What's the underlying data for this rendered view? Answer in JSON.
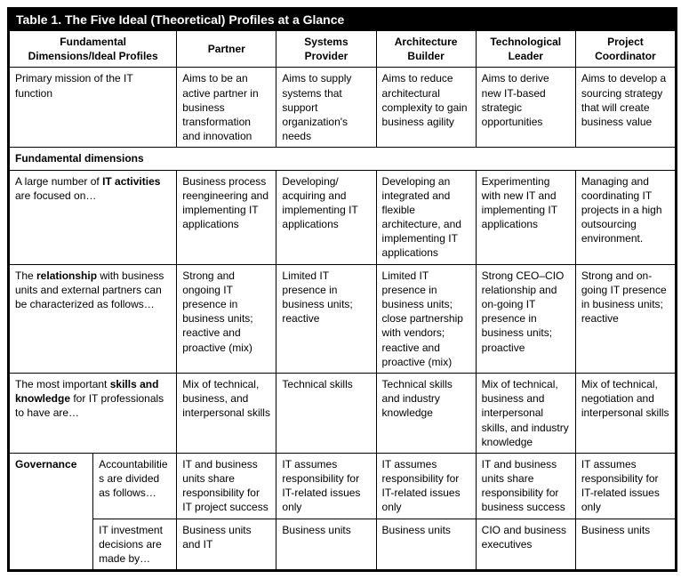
{
  "title": "Table 1.  The Five Ideal (Theoretical) Profiles at a Glance",
  "headers": {
    "dim": "Fundamental Dimensions/Ideal Profiles",
    "partner": "Partner",
    "systems": "Systems Provider",
    "arch": "Architecture Builder",
    "tech": "Technological Leader",
    "proj": "Project Coordinator"
  },
  "rows": {
    "mission": {
      "label": "Primary mission of the IT function",
      "partner": "Aims to be an active partner in business transformation and innovation",
      "systems": "Aims to supply systems that support organization's needs",
      "arch": "Aims to reduce architectural complexity to gain business agility",
      "tech": "Aims to derive new IT-based strategic opportunities",
      "proj": "Aims to develop a sourcing strategy that will create business value"
    },
    "section": "Fundamental dimensions",
    "activities": {
      "label_pre": "A large number of ",
      "label_bold": "IT activities",
      "label_post": " are focused on…",
      "partner": "Business process reengineering and implementing IT applications",
      "systems": "Developing/ acquiring and implementing IT applications",
      "arch": "Developing an integrated and flexible architecture, and implementing IT applications",
      "tech": "Experimenting with new IT and implementing IT applications",
      "proj": "Managing and coordinating IT projects in a high outsourcing environment."
    },
    "relationship": {
      "label_pre": "The ",
      "label_bold": "relationship",
      "label_post": " with business units and external partners can be characterized as follows…",
      "partner": "Strong and ongoing IT presence in business units; reactive and proactive (mix)",
      "systems": "Limited IT presence in business units; reactive",
      "arch": "Limited IT presence in business units; close partnership with vendors; reactive and proactive (mix)",
      "tech": "Strong CEO–CIO relationship and on-going IT presence in business units; proactive",
      "proj": "Strong and on-going IT presence in business units; reactive"
    },
    "skills": {
      "label_pre": "The most important ",
      "label_bold": "skills and knowledge",
      "label_post": " for IT professionals to have are…",
      "partner": "Mix of technical, business, and interpersonal skills",
      "systems": "Technical skills",
      "arch": "Technical skills and industry knowledge",
      "tech": "Mix of technical, business and interpersonal skills, and industry knowledge",
      "proj": "Mix of technical, negotiation and interpersonal skills"
    },
    "gov": {
      "label": "Governance",
      "acc": {
        "sublabel": "Accountabilities are divided as follows…",
        "partner": "IT and business units share responsibility for IT project success",
        "systems": "IT assumes responsibility for IT-related issues only",
        "arch": "IT assumes responsibility for IT-related issues only",
        "tech": "IT and business units share responsibility for business success",
        "proj": "IT assumes responsibility for IT-related issues only"
      },
      "inv": {
        "sublabel": "IT investment decisions are made by…",
        "partner": "Business units and IT",
        "systems": "Business units",
        "arch": "Business units",
        "tech": "CIO and business executives",
        "proj": "Business units"
      }
    }
  }
}
